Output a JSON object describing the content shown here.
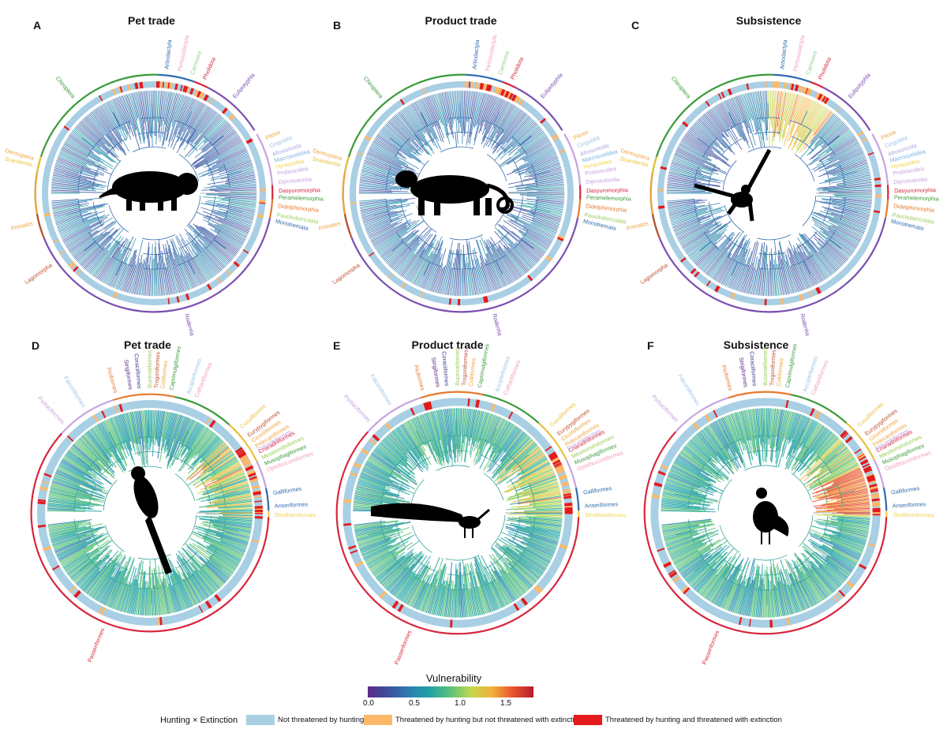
{
  "panels": [
    {
      "letter": "A",
      "title": "Pet trade",
      "group": "mammals",
      "silhouette": "binturong-silhouette"
    },
    {
      "letter": "B",
      "title": "Product trade",
      "group": "mammals",
      "silhouette": "leopard-silhouette"
    },
    {
      "letter": "C",
      "title": "Subsistence",
      "group": "mammals",
      "silhouette": "spider-monkey-silhouette"
    },
    {
      "letter": "D",
      "title": "Pet trade",
      "group": "birds",
      "silhouette": "macaw-silhouette"
    },
    {
      "letter": "E",
      "title": "Product trade",
      "group": "birds",
      "silhouette": "peacock-silhouette"
    },
    {
      "letter": "F",
      "title": "Subsistence",
      "group": "birds",
      "silhouette": "curassow-silhouette"
    }
  ],
  "mammal_orders": [
    {
      "name": "Artiodactyla",
      "color": "#2f6bb0"
    },
    {
      "name": "Perissodactyla",
      "color": "#f29db5"
    },
    {
      "name": "Carnivora",
      "color": "#8fcf8a"
    },
    {
      "name": "Pholidota",
      "color": "#d7263d"
    },
    {
      "name": "Eulipotyphla",
      "color": "#7a4fb0"
    },
    {
      "name": "Pilosa",
      "color": "#f2a33a"
    },
    {
      "name": "Cingulata",
      "color": "#9fc3e6"
    },
    {
      "name": "Afrosoricida",
      "color": "#a6a6e0"
    },
    {
      "name": "Macroscelidea",
      "color": "#7ab0e0"
    },
    {
      "name": "Hyracoidea",
      "color": "#f2d24a"
    },
    {
      "name": "Proboscidea",
      "color": "#c7a3e0"
    },
    {
      "name": "Diprotodontia",
      "color": "#c7a3e0"
    },
    {
      "name": "Dasyuromorphia",
      "color": "#d7263d"
    },
    {
      "name": "Peramelemorphia",
      "color": "#3a9a3a"
    },
    {
      "name": "Didelphimorphia",
      "color": "#e8792e"
    },
    {
      "name": "Paucituberculata",
      "color": "#9acd5a"
    },
    {
      "name": "Monotremata",
      "color": "#2f6bb0"
    },
    {
      "name": "Rodentia",
      "color": "#7a4fb0"
    },
    {
      "name": "Lagomorpha",
      "color": "#c0502e"
    },
    {
      "name": "Primates",
      "color": "#f2a33a"
    },
    {
      "name": "Scandentia",
      "color": "#e8c23a"
    },
    {
      "name": "Dermoptera",
      "color": "#f2a33a"
    },
    {
      "name": "Chiroptera",
      "color": "#3a9a3a"
    }
  ],
  "bird_orders": [
    {
      "name": "Passeriformes",
      "color": "#d7263d"
    },
    {
      "name": "Psittaciformes",
      "color": "#c7a3e0"
    },
    {
      "name": "Falconiformes",
      "color": "#9fc3e6"
    },
    {
      "name": "Piciformes",
      "color": "#e8792e"
    },
    {
      "name": "Strigiformes",
      "color": "#5b2a86"
    },
    {
      "name": "Coraciiformes",
      "color": "#3a3a8a"
    },
    {
      "name": "Bucerotiformes",
      "color": "#9acd5a"
    },
    {
      "name": "Trogoniformes",
      "color": "#c0502e"
    },
    {
      "name": "Coliiformes",
      "color": "#f2a33a"
    },
    {
      "name": "Caprimulgiformes",
      "color": "#3a9a3a"
    },
    {
      "name": "Accipitriformes",
      "color": "#9fc3e6"
    },
    {
      "name": "Cathartiformes",
      "color": "#f29db5"
    },
    {
      "name": "Eurypygiformes",
      "color": "#c0502e"
    },
    {
      "name": "Ciconiiformes",
      "color": "#f2a33a"
    },
    {
      "name": "Pelecaniformes",
      "color": "#f2a33a"
    },
    {
      "name": "Charadriiformes",
      "color": "#d7263d"
    },
    {
      "name": "Mesitornithiformes",
      "color": "#9acd5a"
    },
    {
      "name": "Musophagiformes",
      "color": "#3a9a3a"
    },
    {
      "name": "Opisthocomiformes",
      "color": "#f29db5"
    },
    {
      "name": "Cuculiformes",
      "color": "#e8c23a"
    },
    {
      "name": "Columbiformes",
      "color": "#c7a3e0"
    },
    {
      "name": "Galliformes",
      "color": "#2f6bb0"
    },
    {
      "name": "Anseriformes",
      "color": "#2f6bb0"
    },
    {
      "name": "Struthioniformes",
      "color": "#f2d24a"
    }
  ],
  "legend": {
    "vulnerability": {
      "title": "Vulnerability",
      "ticks": [
        "0.0",
        "0.5",
        "1.0",
        "1.5"
      ],
      "tick_values": [
        0.0,
        0.5,
        1.0,
        1.5
      ],
      "range": [
        0.0,
        1.8
      ],
      "colors": [
        "#5b2a86",
        "#3b4fa0",
        "#2b7fb0",
        "#21a3a3",
        "#5cc27a",
        "#c3d84c",
        "#f3b03c",
        "#e8552e",
        "#b61a2b"
      ]
    },
    "hunting_extinction": {
      "title": "Hunting × Extinction",
      "items": [
        {
          "label": "Not threatened by hunting",
          "color": "#a9cfe4"
        },
        {
          "label": "Threatened by hunting but not threatened with extinction",
          "color": "#fbb969"
        },
        {
          "label": "Threatened by hunting and threatened with extinction",
          "color": "#e41a1c"
        }
      ]
    }
  }
}
